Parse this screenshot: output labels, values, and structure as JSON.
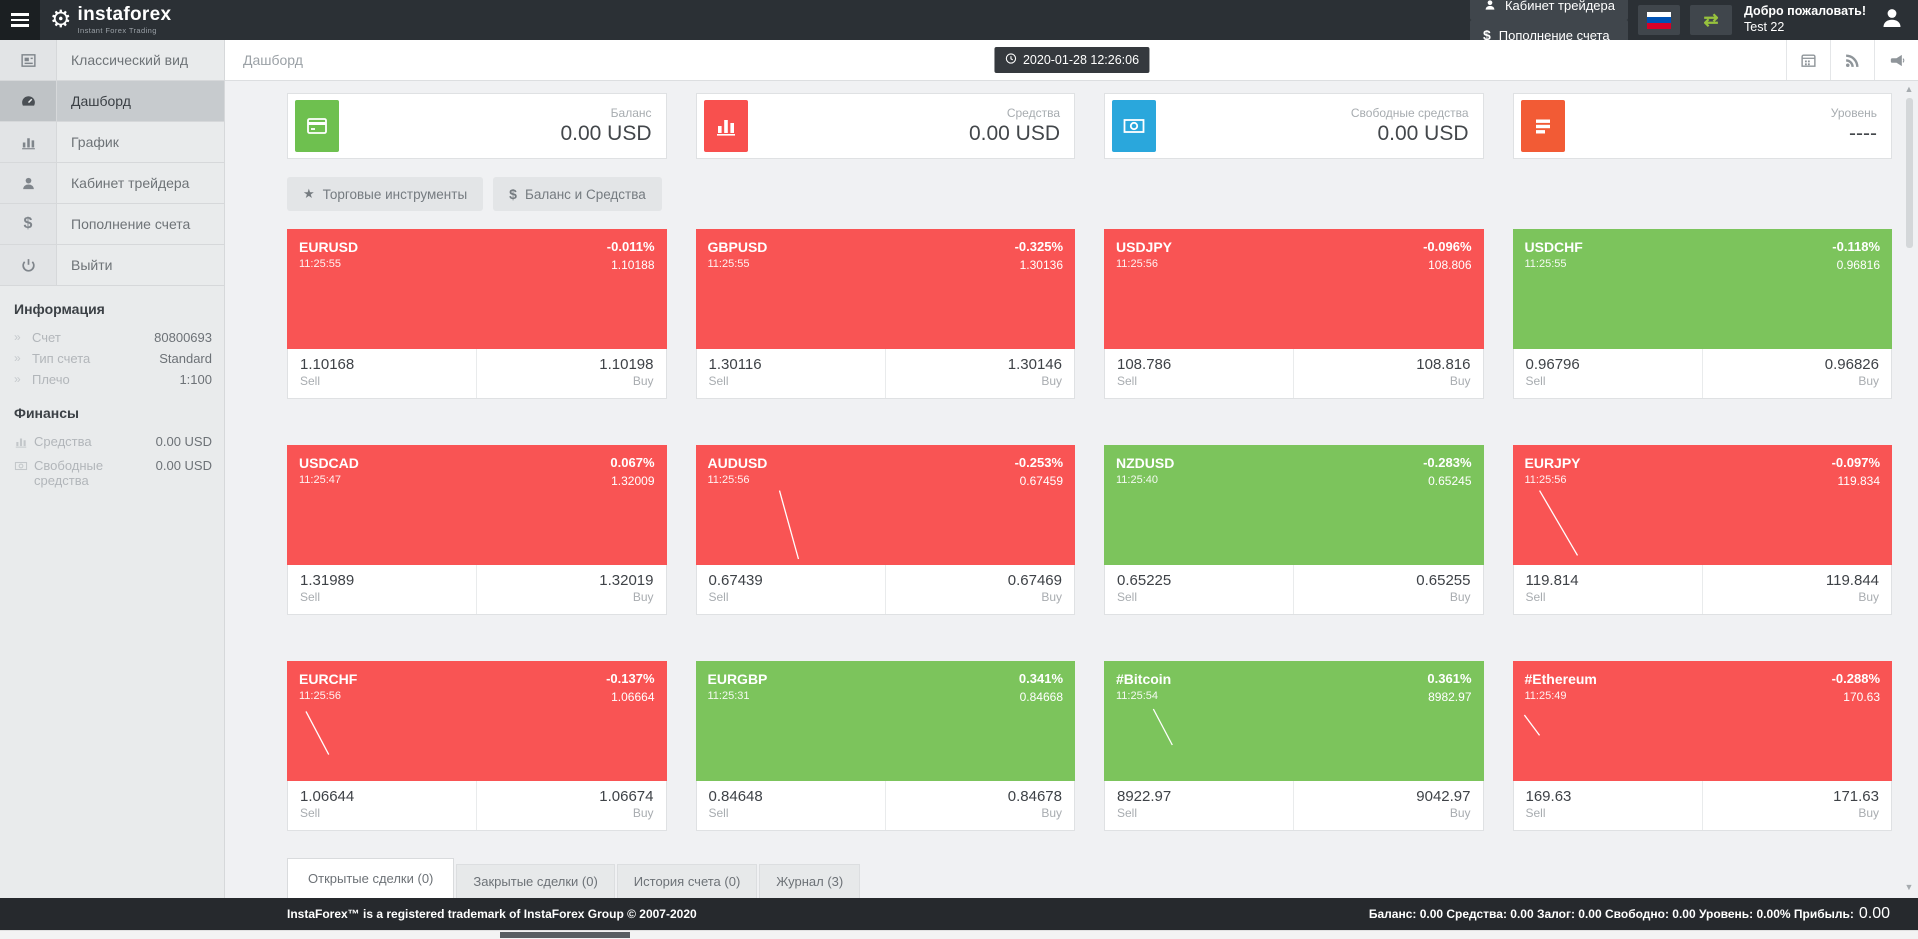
{
  "topbar": {
    "logo_title": "instaforex",
    "logo_subtitle": "Instant Forex Trading",
    "buttons": [
      {
        "key": "trader-cabinet",
        "label": "Кабинет трейдера",
        "icon": "person-icon"
      },
      {
        "key": "deposit",
        "label": "Пополнение счета",
        "icon": "dollar-icon"
      }
    ],
    "language_flag": "russian-flag",
    "welcome_line1": "Добро пожаловать!",
    "welcome_line2": "Test 22"
  },
  "breadcrumb": {
    "title": "Дашборд",
    "datetime": "2020-01-28 12:26:06",
    "actions": [
      {
        "key": "calendar",
        "icon": "calendar-icon"
      },
      {
        "key": "rss",
        "icon": "rss-icon"
      },
      {
        "key": "announcements",
        "icon": "megaphone-icon"
      }
    ]
  },
  "sidebar": {
    "menu": [
      {
        "key": "classic-view",
        "label": "Классический вид",
        "icon": "classic-view-icon",
        "active": false
      },
      {
        "key": "dashboard",
        "label": "Дашборд",
        "icon": "dashboard-icon",
        "active": true
      },
      {
        "key": "chart",
        "label": "График",
        "icon": "bar-chart-icon",
        "active": false
      },
      {
        "key": "trader-cabinet",
        "label": "Кабинет трейдера",
        "icon": "person-icon",
        "active": false
      },
      {
        "key": "deposit",
        "label": "Пополнение счета",
        "icon": "dollar-icon",
        "active": false
      },
      {
        "key": "logout",
        "label": "Выйти",
        "icon": "power-icon",
        "active": false
      }
    ],
    "info_heading": "Информация",
    "info_rows": [
      {
        "key": "account",
        "label": "Счет",
        "value": "80800693"
      },
      {
        "key": "account-type",
        "label": "Тип счета",
        "value": "Standard"
      },
      {
        "key": "leverage",
        "label": "Плечо",
        "value": "1:100"
      }
    ],
    "finance_heading": "Финансы",
    "finance_rows": [
      {
        "key": "equity",
        "label": "Средства",
        "value": "0.00 USD",
        "icon": "bar-chart-icon"
      },
      {
        "key": "free-margin",
        "label": "Свободные средства",
        "value": "0.00 USD",
        "icon": "banknote-icon"
      }
    ]
  },
  "cards": [
    {
      "key": "balance",
      "label": "Баланс",
      "value": "0.00 USD",
      "icon": "credit-card-icon",
      "color": "#6ec04f"
    },
    {
      "key": "equity",
      "label": "Средства",
      "value": "0.00 USD",
      "icon": "bar-chart-icon",
      "color": "#f8504e"
    },
    {
      "key": "free-margin",
      "label": "Свободные средства",
      "value": "0.00 USD",
      "icon": "banknote-icon",
      "color": "#2aa7dc"
    },
    {
      "key": "level",
      "label": "Уровень",
      "value": "----",
      "icon": "list-icon",
      "color": "#f25b35"
    }
  ],
  "filter_buttons": [
    {
      "key": "trading-instruments",
      "label": "Торговые инструменты",
      "icon": "star-icon"
    },
    {
      "key": "balance-and-equity",
      "label": "Баланс и Средства",
      "icon": "dollar-icon"
    }
  ],
  "tile_labels": {
    "sell": "Sell",
    "buy": "Buy"
  },
  "colors": {
    "up": "#7cc45c",
    "down": "#f95454"
  },
  "tiles": [
    {
      "symbol": "EURUSD",
      "time": "11:25:55",
      "change_pct": "-0.011%",
      "price": "1.10188",
      "sell": "1.10168",
      "buy": "1.10198",
      "trend": "down",
      "spark": null
    },
    {
      "symbol": "GBPUSD",
      "time": "11:25:55",
      "change_pct": "-0.325%",
      "price": "1.30136",
      "sell": "1.30116",
      "buy": "1.30146",
      "trend": "down",
      "spark": null
    },
    {
      "symbol": "USDJPY",
      "time": "11:25:56",
      "change_pct": "-0.096%",
      "price": "108.806",
      "sell": "108.786",
      "buy": "108.816",
      "trend": "down",
      "spark": null
    },
    {
      "symbol": "USDCHF",
      "time": "11:25:55",
      "change_pct": "-0.118%",
      "price": "0.96816",
      "sell": "0.96796",
      "buy": "0.96826",
      "trend": "up",
      "spark": null
    },
    {
      "symbol": "USDCAD",
      "time": "11:25:47",
      "change_pct": "0.067%",
      "price": "1.32009",
      "sell": "1.31989",
      "buy": "1.32019",
      "trend": "down",
      "spark": null
    },
    {
      "symbol": "AUDUSD",
      "time": "11:25:56",
      "change_pct": "-0.253%",
      "price": "0.67459",
      "sell": "0.67439",
      "buy": "0.67469",
      "trend": "down",
      "spark": [
        22,
        38,
        27,
        95
      ]
    },
    {
      "symbol": "NZDUSD",
      "time": "11:25:40",
      "change_pct": "-0.283%",
      "price": "0.65245",
      "sell": "0.65225",
      "buy": "0.65255",
      "trend": "up",
      "spark": null
    },
    {
      "symbol": "EURJPY",
      "time": "11:25:56",
      "change_pct": "-0.097%",
      "price": "119.834",
      "sell": "119.814",
      "buy": "119.844",
      "trend": "down",
      "spark": [
        7,
        38,
        17,
        92
      ]
    },
    {
      "symbol": "EURCHF",
      "time": "11:25:56",
      "change_pct": "-0.137%",
      "price": "1.06664",
      "sell": "1.06644",
      "buy": "1.06674",
      "trend": "down",
      "spark": [
        5,
        42,
        11,
        78
      ]
    },
    {
      "symbol": "EURGBP",
      "time": "11:25:31",
      "change_pct": "0.341%",
      "price": "0.84668",
      "sell": "0.84648",
      "buy": "0.84678",
      "trend": "up",
      "spark": null
    },
    {
      "symbol": "#Bitcoin",
      "time": "11:25:54",
      "change_pct": "0.361%",
      "price": "8982.97",
      "sell": "8922.97",
      "buy": "9042.97",
      "trend": "up",
      "spark": [
        13,
        40,
        18,
        70
      ]
    },
    {
      "symbol": "#Ethereum",
      "time": "11:25:49",
      "change_pct": "-0.288%",
      "price": "170.63",
      "sell": "169.63",
      "buy": "171.63",
      "trend": "down",
      "spark": [
        3,
        45,
        7,
        62
      ]
    }
  ],
  "tabs": [
    {
      "key": "open-trades",
      "label": "Открытые сделки (0)",
      "active": true
    },
    {
      "key": "closed-trades",
      "label": "Закрытые сделки (0)",
      "active": false
    },
    {
      "key": "account-history",
      "label": "История счета (0)",
      "active": false
    },
    {
      "key": "journal",
      "label": "Журнал (3)",
      "active": false
    }
  ],
  "footer": {
    "left": "InstaForex™ is a registered trademark of InstaForex Group © 2007-2020",
    "summary": "Баланс: 0.00 Средства: 0.00 Залог: 0.00 Свободно: 0.00 Уровень: 0.00% Прибыль:",
    "profit": "0.00"
  }
}
